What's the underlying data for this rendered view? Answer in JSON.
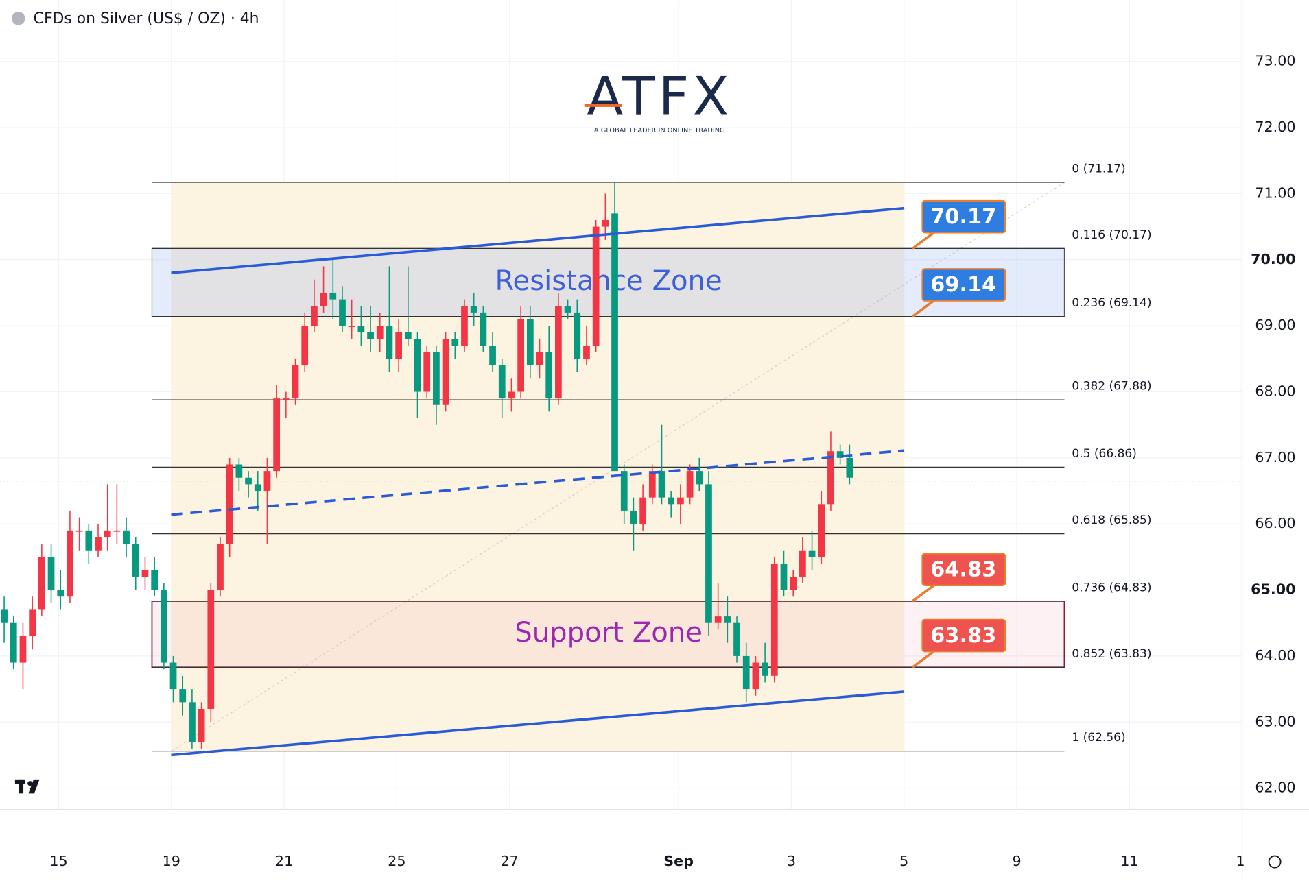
{
  "chart_data": {
    "type": "candlestick",
    "title": "CFDs on Silver (US$ / OZ) · 4h",
    "logo": {
      "name": "ATFX",
      "tagline": "A GLOBAL LEADER IN ONLINE TRADING"
    },
    "up_color": "#f23645",
    "down_color": "#089981",
    "xlim": [
      -0.444,
      131.8
    ],
    "xticks": [
      {
        "value": 5.8,
        "label": "15"
      },
      {
        "value": 17.8,
        "label": "19"
      },
      {
        "value": 29.8,
        "label": "21"
      },
      {
        "value": 41.8,
        "label": "25"
      },
      {
        "value": 53.8,
        "label": "27"
      },
      {
        "value": 71.8,
        "label": "Sep"
      },
      {
        "value": 83.8,
        "label": "3"
      },
      {
        "value": 95.8,
        "label": "5"
      },
      {
        "value": 107.8,
        "label": "9"
      },
      {
        "value": 119.8,
        "label": "11"
      },
      {
        "value": 131.6,
        "label": "1"
      }
    ],
    "ylim": [
      61.68,
      73.93
    ],
    "yticks": [
      {
        "value": 62,
        "label": "62.00"
      },
      {
        "value": 63,
        "label": "63.00"
      },
      {
        "value": 64,
        "label": "64.00"
      },
      {
        "value": 65,
        "label": "65.00"
      },
      {
        "value": 66,
        "label": "66.00"
      },
      {
        "value": 67,
        "label": "67.00"
      },
      {
        "value": 68,
        "label": "68.00"
      },
      {
        "value": 69,
        "label": "69.00"
      },
      {
        "value": 70,
        "label": "70.00"
      },
      {
        "value": 71,
        "label": "71.00"
      },
      {
        "value": 72,
        "label": "72.00"
      },
      {
        "value": 73,
        "label": "73.00"
      }
    ],
    "grid": true,
    "open": [
      64.7,
      64.5,
      63.9,
      64.3,
      64.7,
      65.5,
      65.0,
      64.9,
      65.9,
      65.9,
      65.6,
      65.8,
      65.9,
      65.9,
      65.7,
      65.2,
      65.3,
      65.0,
      63.9,
      63.5,
      63.3,
      62.7,
      63.2,
      65.0,
      65.7,
      66.9,
      66.7,
      66.6,
      66.5,
      66.8,
      67.9,
      67.9,
      68.4,
      69.0,
      69.3,
      69.5,
      69.4,
      69.0,
      69.0,
      68.9,
      68.8,
      69.0,
      68.5,
      68.9,
      68.8,
      68.0,
      68.6,
      67.8,
      68.8,
      68.7,
      69.3,
      69.2,
      68.7,
      68.4,
      67.9,
      68.0,
      69.1,
      68.4,
      68.6,
      67.9,
      69.3,
      69.2,
      68.5,
      68.7,
      70.5,
      70.7,
      66.8,
      66.2,
      66.0,
      66.4,
      66.8,
      66.4,
      66.3,
      66.4,
      66.8,
      66.6,
      64.5,
      64.6,
      64.5,
      64.0,
      63.5,
      63.9,
      63.7,
      65.4,
      65.0,
      65.2,
      65.6,
      65.5,
      66.3,
      67.1,
      67.0
    ],
    "high": [
      64.9,
      64.6,
      64.5,
      64.9,
      65.7,
      65.7,
      65.3,
      66.2,
      66.1,
      66.0,
      66.0,
      66.6,
      66.6,
      66.1,
      65.8,
      65.5,
      65.5,
      65.1,
      64.0,
      63.7,
      63.5,
      63.3,
      65.1,
      65.8,
      67.0,
      67.0,
      66.8,
      66.8,
      67.0,
      68.1,
      68.0,
      68.5,
      69.2,
      69.7,
      69.9,
      70.0,
      69.6,
      69.4,
      69.3,
      69.3,
      69.2,
      69.9,
      69.1,
      69.9,
      68.9,
      68.7,
      68.7,
      68.9,
      68.9,
      69.4,
      69.5,
      69.3,
      68.9,
      68.5,
      68.2,
      69.3,
      69.3,
      68.8,
      69.0,
      69.5,
      69.4,
      69.4,
      69.0,
      70.6,
      71.0,
      71.17,
      66.9,
      66.4,
      66.6,
      66.9,
      67.5,
      66.5,
      66.6,
      66.9,
      67.0,
      66.8,
      65.1,
      64.9,
      64.6,
      64.2,
      64.0,
      64.2,
      65.5,
      65.6,
      65.3,
      65.8,
      65.9,
      66.5,
      67.4,
      67.2,
      67.2
    ],
    "low": [
      64.2,
      63.8,
      63.5,
      64.1,
      64.6,
      64.8,
      64.7,
      64.8,
      65.6,
      65.4,
      65.5,
      65.6,
      65.7,
      65.5,
      65.0,
      65.0,
      64.9,
      63.8,
      63.3,
      63.1,
      62.6,
      62.6,
      63.0,
      64.9,
      65.5,
      66.5,
      66.4,
      66.2,
      65.7,
      66.7,
      67.6,
      67.8,
      68.3,
      68.9,
      69.2,
      69.1,
      68.9,
      68.8,
      68.7,
      68.6,
      68.6,
      68.3,
      68.3,
      68.7,
      67.6,
      67.9,
      67.5,
      67.7,
      68.5,
      68.6,
      69.0,
      68.6,
      68.3,
      67.6,
      67.7,
      67.9,
      68.2,
      68.2,
      67.7,
      67.8,
      69.1,
      68.3,
      68.4,
      68.6,
      70.3,
      66.8,
      66.0,
      65.6,
      65.9,
      66.3,
      66.3,
      66.1,
      66.0,
      66.3,
      66.5,
      64.3,
      64.4,
      64.2,
      63.9,
      63.3,
      63.4,
      63.6,
      63.6,
      64.9,
      64.9,
      65.1,
      65.3,
      65.4,
      66.2,
      66.9,
      66.6
    ],
    "close": [
      64.5,
      63.9,
      64.3,
      64.7,
      65.5,
      65.0,
      64.9,
      65.9,
      65.9,
      65.6,
      65.8,
      65.9,
      65.9,
      65.7,
      65.2,
      65.3,
      65.0,
      63.9,
      63.5,
      63.3,
      62.7,
      63.2,
      65.0,
      65.7,
      66.9,
      66.7,
      66.6,
      66.5,
      66.8,
      67.9,
      67.9,
      68.4,
      69.0,
      69.3,
      69.5,
      69.4,
      69.0,
      69.0,
      68.9,
      68.8,
      69.0,
      68.5,
      68.9,
      68.8,
      68.0,
      68.6,
      67.8,
      68.8,
      68.7,
      69.3,
      69.2,
      68.7,
      68.4,
      67.9,
      68.0,
      69.1,
      68.4,
      68.6,
      67.9,
      69.3,
      69.2,
      68.5,
      68.7,
      70.5,
      70.6,
      66.8,
      66.2,
      66.0,
      66.4,
      66.8,
      66.4,
      66.3,
      66.4,
      66.8,
      66.6,
      64.5,
      64.6,
      64.5,
      64.0,
      63.5,
      63.9,
      63.7,
      65.4,
      65.0,
      65.2,
      65.6,
      65.5,
      66.3,
      67.1,
      67.0,
      66.7
    ],
    "last_price": 66.65,
    "fib_levels": [
      {
        "label": "0 (71.17)",
        "value": 71.17
      },
      {
        "label": "0.116 (70.17)",
        "value": 70.17
      },
      {
        "label": "0.236 (69.14)",
        "value": 69.14
      },
      {
        "label": "0.382 (67.88)",
        "value": 67.88
      },
      {
        "label": "0.5 (66.86)",
        "value": 66.86
      },
      {
        "label": "0.618 (65.85)",
        "value": 65.85
      },
      {
        "label": "0.736 (64.83)",
        "value": 64.83
      },
      {
        "label": "0.852 (63.83)",
        "value": 63.83
      },
      {
        "label": "1 (62.56)",
        "value": 62.56
      }
    ],
    "zones": [
      {
        "label": "Resistance Zone",
        "low": 69.14,
        "high": 70.17,
        "color": "#3d5fd9"
      },
      {
        "label": "Support Zone",
        "low": 63.83,
        "high": 64.83,
        "color": "#9c27b0"
      }
    ],
    "price_labels": [
      {
        "value": 70.17,
        "color": "#2f7de1"
      },
      {
        "value": 69.14,
        "color": "#2f7de1"
      },
      {
        "value": 64.83,
        "color": "#ef5350"
      },
      {
        "value": 63.83,
        "color": "#ef5350"
      }
    ],
    "trendlines": [
      {
        "x": [
          17.78,
          95.82
        ],
        "y": [
          69.8,
          70.78
        ],
        "style": "solid"
      },
      {
        "x": [
          17.78,
          95.82
        ],
        "y": [
          62.5,
          63.46
        ],
        "style": "solid"
      },
      {
        "x": [
          17.78,
          95.82
        ],
        "y": [
          66.14,
          67.11
        ],
        "style": "dashed"
      }
    ]
  }
}
